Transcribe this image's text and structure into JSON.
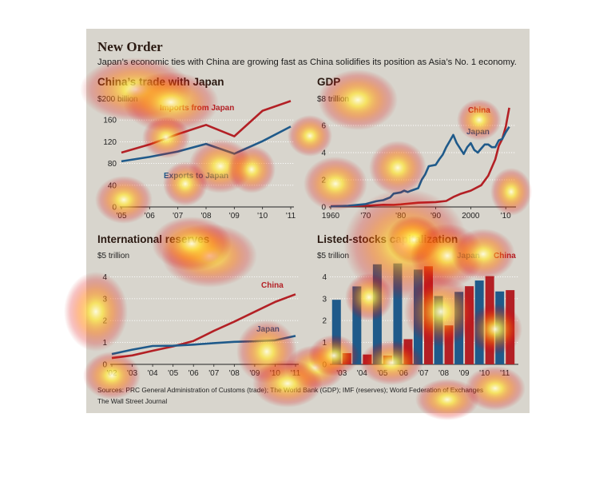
{
  "header": {
    "title": "New Order",
    "subtitle": "Japan’s economic ties with China are growing fast as China solidifies its position as Asia’s No. 1 economy."
  },
  "footer": {
    "sources": "Sources: PRC General Administration of Customs (trade); The World Bank (GDP); IMF (reserves); World Federation of Exchanges",
    "credit": "The Wall Street Journal"
  },
  "colors": {
    "china": "#b32025",
    "japan": "#1f5a8a",
    "panel": "#d8d5cd",
    "title": "#2b1a12"
  },
  "chart_data": [
    {
      "id": "trade",
      "type": "line",
      "title": "China’s trade with Japan",
      "unit_label": "$200 billion",
      "categories": [
        "'05",
        "'06",
        "'07",
        "'08",
        "'09",
        "'10",
        "'11"
      ],
      "yticks": [
        "0",
        "40",
        "80",
        "120",
        "160"
      ],
      "ylim": [
        0,
        200
      ],
      "series": [
        {
          "name": "Imports from Japan",
          "color": "#b32025",
          "values": [
            100,
            115,
            134,
            151,
            130,
            177,
            195
          ]
        },
        {
          "name": "Exports to Japan",
          "color": "#1f5a8a",
          "values": [
            84,
            92,
            102,
            116,
            98,
            121,
            148
          ]
        }
      ]
    },
    {
      "id": "gdp",
      "type": "line",
      "title": "GDP",
      "unit_label": "$8 trillion",
      "xticks": [
        "1960",
        "'70",
        "'80",
        "'90",
        "2000",
        "'10"
      ],
      "xtick_values": [
        1960,
        1970,
        1980,
        1990,
        2000,
        2010
      ],
      "yticks": [
        "0",
        "2",
        "4",
        "6"
      ],
      "xlim": [
        1960,
        2012
      ],
      "ylim": [
        0,
        8
      ],
      "series": [
        {
          "name": "China",
          "color": "#b32025",
          "x": [
            1960,
            1965,
            1970,
            1975,
            1978,
            1980,
            1985,
            1990,
            1993,
            1995,
            1997,
            2000,
            2003,
            2005,
            2007,
            2008,
            2009,
            2010,
            2011
          ],
          "y": [
            0.06,
            0.07,
            0.09,
            0.16,
            0.15,
            0.19,
            0.31,
            0.36,
            0.44,
            0.73,
            0.95,
            1.2,
            1.6,
            2.3,
            3.5,
            4.5,
            5.0,
            5.9,
            7.3
          ]
        },
        {
          "name": "Japan",
          "color": "#1f5a8a",
          "x": [
            1960,
            1965,
            1970,
            1973,
            1975,
            1977,
            1978,
            1980,
            1981,
            1982,
            1983,
            1985,
            1986,
            1987,
            1988,
            1990,
            1991,
            1992,
            1993,
            1994,
            1995,
            1996,
            1997,
            1998,
            1999,
            2000,
            2001,
            2002,
            2003,
            2004,
            2005,
            2006,
            2007,
            2008,
            2009,
            2010,
            2011
          ],
          "y": [
            0.04,
            0.09,
            0.21,
            0.42,
            0.5,
            0.7,
            0.98,
            1.07,
            1.2,
            1.1,
            1.2,
            1.38,
            2.0,
            2.4,
            3.0,
            3.1,
            3.5,
            3.85,
            4.4,
            4.85,
            5.3,
            4.7,
            4.3,
            3.9,
            4.4,
            4.7,
            4.2,
            4.0,
            4.3,
            4.6,
            4.6,
            4.4,
            4.4,
            4.9,
            5.0,
            5.5,
            5.9
          ]
        }
      ]
    },
    {
      "id": "reserves",
      "type": "line",
      "title": "International reserves",
      "unit_label": "$5 trillion",
      "categories": [
        "'02",
        "'03",
        "'04",
        "'05",
        "'06",
        "'07",
        "'08",
        "'09",
        "'10",
        "'11"
      ],
      "yticks": [
        "0",
        "1",
        "2",
        "3",
        "4"
      ],
      "ylim": [
        0,
        5
      ],
      "series": [
        {
          "name": "China",
          "color": "#b32025",
          "values": [
            0.29,
            0.41,
            0.62,
            0.82,
            1.07,
            1.53,
            1.95,
            2.4,
            2.85,
            3.2
          ]
        },
        {
          "name": "Japan",
          "color": "#1f5a8a",
          "values": [
            0.47,
            0.67,
            0.84,
            0.85,
            0.9,
            0.97,
            1.03,
            1.05,
            1.1,
            1.3
          ]
        }
      ]
    },
    {
      "id": "stocks",
      "type": "bar",
      "title": "Listed-stocks capitalization",
      "unit_label": "$5 trillion",
      "categories": [
        "'03",
        "'04",
        "'05",
        "'06",
        "'07",
        "'08",
        "'09",
        "'10",
        "'11"
      ],
      "yticks": [
        "0",
        "1",
        "2",
        "3",
        "4"
      ],
      "ylim": [
        0,
        5
      ],
      "series": [
        {
          "name": "Japan",
          "color": "#1f5a8a",
          "values": [
            2.95,
            3.56,
            4.57,
            4.61,
            4.33,
            3.12,
            3.31,
            3.83,
            3.33
          ]
        },
        {
          "name": "China",
          "color": "#b32025",
          "values": [
            0.51,
            0.45,
            0.4,
            1.15,
            4.48,
            1.78,
            3.57,
            4.03,
            3.39
          ]
        }
      ]
    }
  ]
}
